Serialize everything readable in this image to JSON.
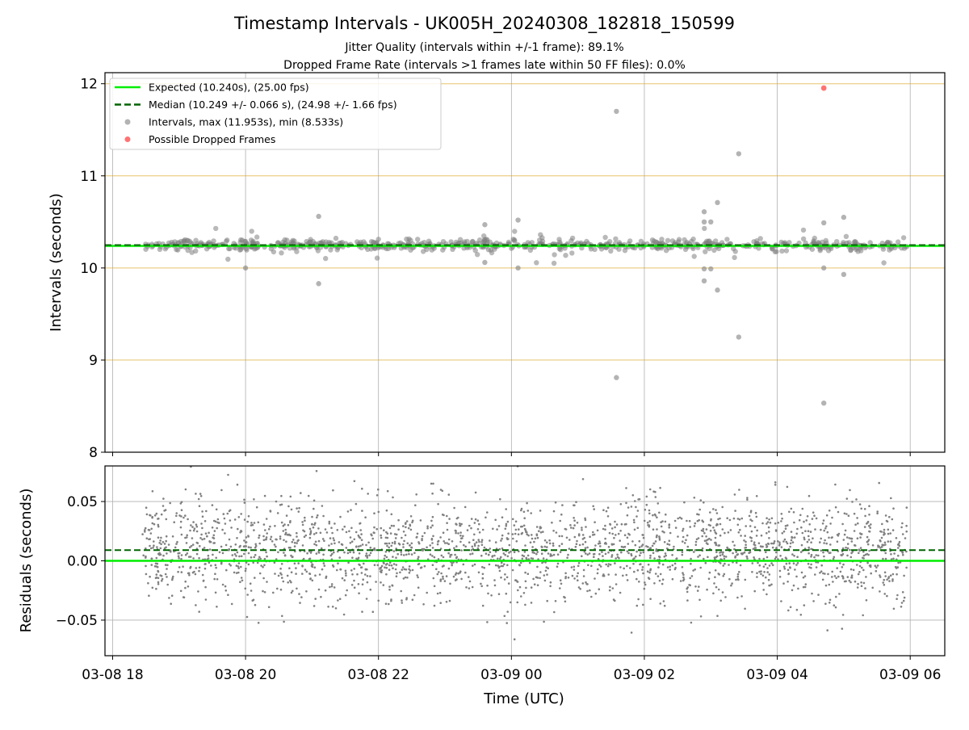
{
  "chart_data": {
    "type": "scatter",
    "title": "Timestamp Intervals - UK005H_20240308_182818_150599",
    "subtitle_lines": [
      "Jitter Quality (intervals within +/-1 frame): 89.1%",
      "Dropped Frame Rate (intervals >1 frames late within 50 FF files): 0.0%"
    ],
    "xlabel": "Time (UTC)",
    "x_tick_labels": [
      "03-08 18",
      "03-08 20",
      "03-08 22",
      "03-09 00",
      "03-09 02",
      "03-09 04",
      "03-09 06"
    ],
    "x_tick_hours": [
      18,
      20,
      22,
      24,
      26,
      28,
      30
    ],
    "x_range_hours": [
      17.885,
      30.52
    ],
    "x_data_range_hours": [
      18.45,
      29.95
    ],
    "colors": {
      "expected": "#00ee00",
      "median": "#006400",
      "intervals": "#808080",
      "dropped": "#ff0000",
      "threshold": "#daa520",
      "grid": "#b0b0b0"
    },
    "panels": [
      {
        "ylabel": "Intervals (seconds)",
        "ylim": [
          8,
          12.12
        ],
        "y_ticks": [
          8,
          9,
          10,
          11,
          12
        ],
        "y_tick_labels": [
          "8",
          "9",
          "10",
          "11",
          "12"
        ],
        "grid": true,
        "threshold_lines": [
          9,
          10,
          11,
          12
        ],
        "expected_value": 10.24,
        "median_value": 10.249,
        "legend_position": "upper-left",
        "legend": [
          "Expected (10.240s), (25.00 fps)",
          "Median (10.249 +/- 0.066 s), (24.98 +/- 1.66 fps)",
          "Intervals, max (11.953s), min (8.533s)",
          "Possible Dropped Frames"
        ],
        "outliers": [
          {
            "x": 20.0,
            "y": 10.0
          },
          {
            "x": 21.1,
            "y": 10.56
          },
          {
            "x": 21.1,
            "y": 9.83
          },
          {
            "x": 23.6,
            "y": 10.47
          },
          {
            "x": 24.1,
            "y": 10.52
          },
          {
            "x": 24.1,
            "y": 10.0
          },
          {
            "x": 23.6,
            "y": 10.06
          },
          {
            "x": 25.58,
            "y": 11.7
          },
          {
            "x": 25.58,
            "y": 8.81
          },
          {
            "x": 26.9,
            "y": 10.5
          },
          {
            "x": 26.9,
            "y": 10.61
          },
          {
            "x": 27.0,
            "y": 10.5
          },
          {
            "x": 27.1,
            "y": 10.71
          },
          {
            "x": 26.9,
            "y": 9.86
          },
          {
            "x": 26.9,
            "y": 9.99
          },
          {
            "x": 27.0,
            "y": 9.99
          },
          {
            "x": 27.1,
            "y": 9.76
          },
          {
            "x": 27.42,
            "y": 11.24
          },
          {
            "x": 27.42,
            "y": 9.25
          },
          {
            "x": 28.7,
            "y": 10.49
          },
          {
            "x": 28.7,
            "y": 8.533
          },
          {
            "x": 28.7,
            "y": 10.0
          },
          {
            "x": 29.0,
            "y": 10.55
          },
          {
            "x": 29.0,
            "y": 9.93
          }
        ],
        "dropped_frames": [
          {
            "x": 28.7,
            "y": 11.953
          }
        ]
      },
      {
        "ylabel": "Residuals (seconds)",
        "ylim": [
          -0.08,
          0.08
        ],
        "y_ticks": [
          -0.05,
          0.0,
          0.05
        ],
        "y_tick_labels": [
          "−0.05",
          "0.00",
          "0.05"
        ],
        "grid": true,
        "expected_value": 0.0,
        "median_value": 0.009
      }
    ]
  }
}
